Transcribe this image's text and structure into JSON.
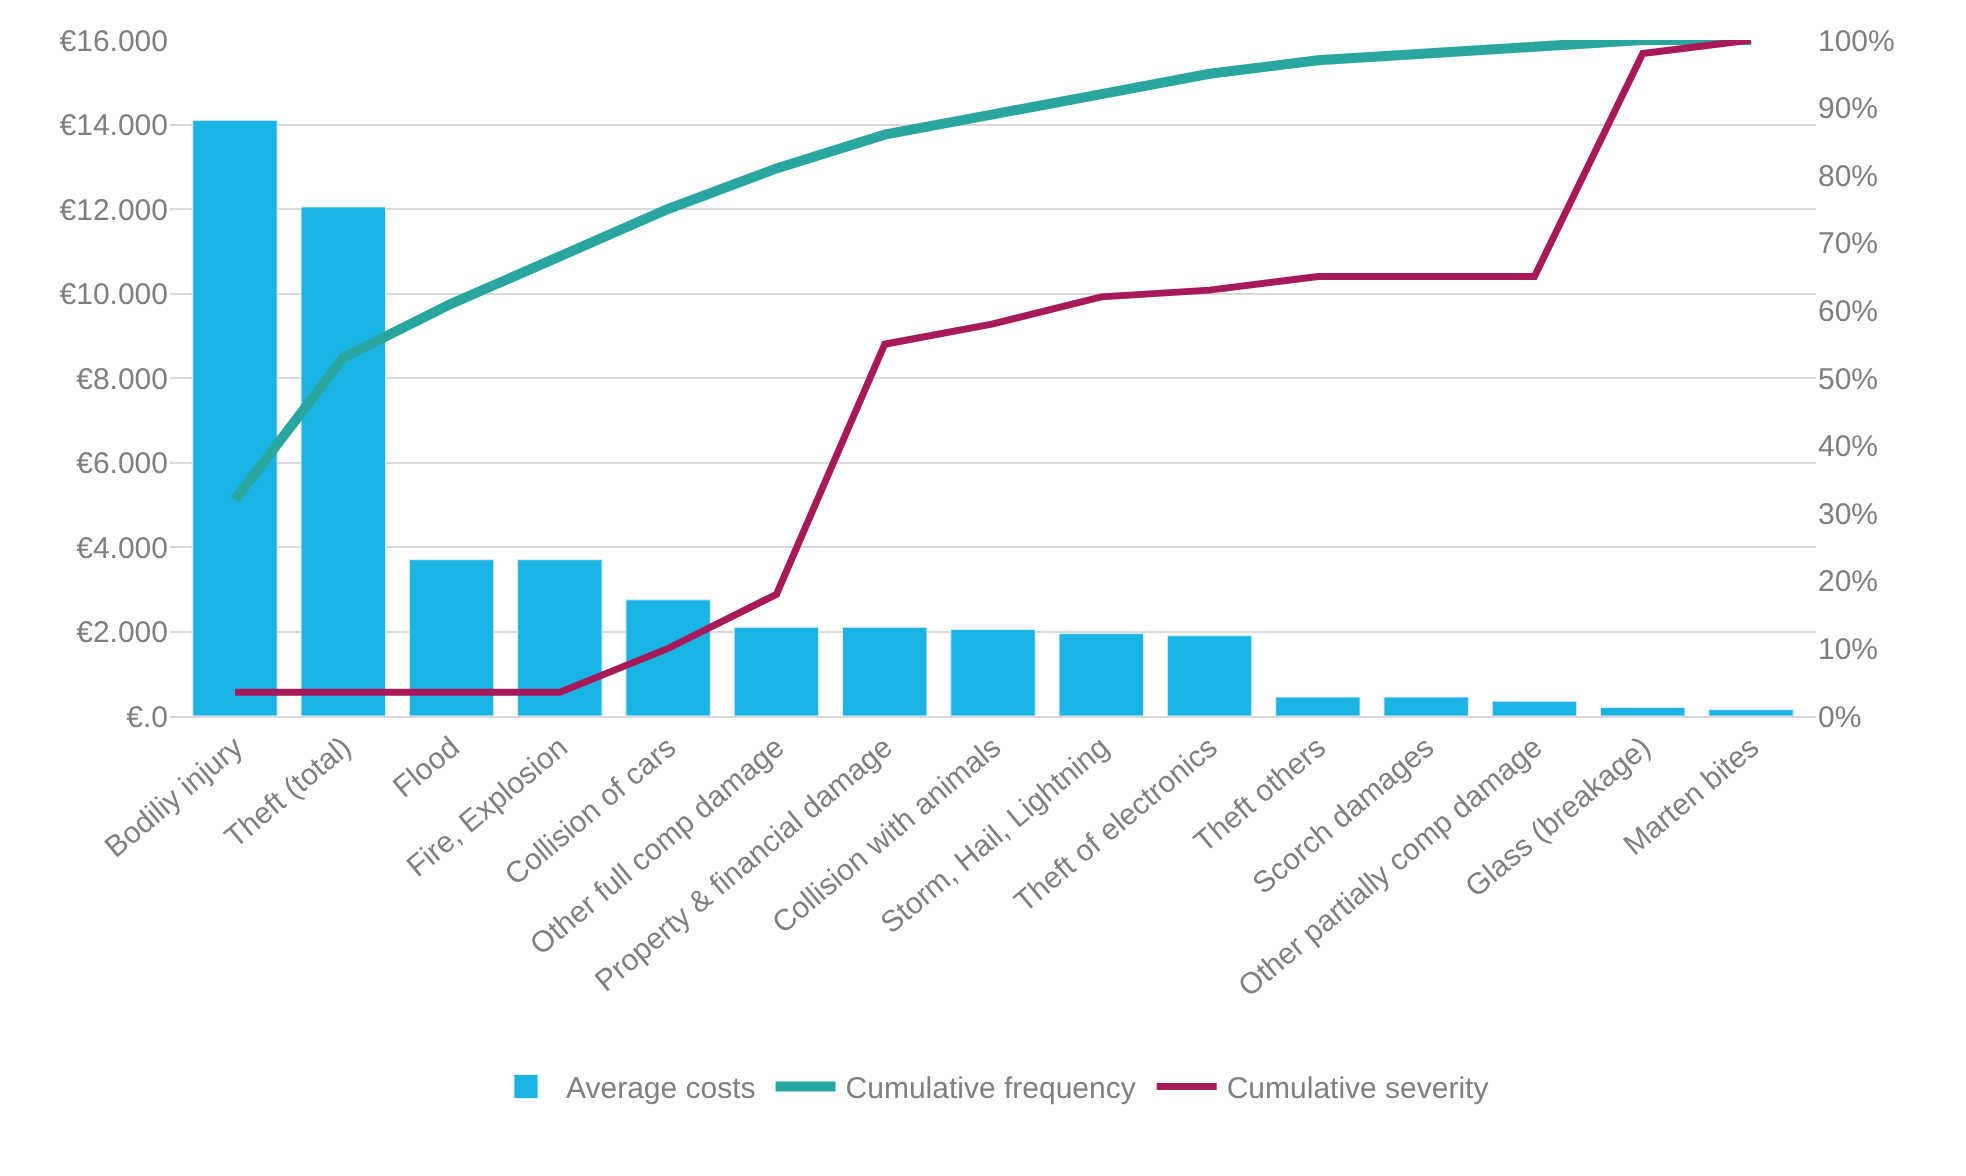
{
  "chart_data": {
    "type": "bar",
    "categories": [
      "Bodiliy injury",
      "Theft (total)",
      "Flood",
      "Fire, Explosion",
      "Collision of cars",
      "Other full comp damage",
      "Property & financial damage",
      "Collision with animals",
      "Storm, Hail, Lightning",
      "Theft of electronics",
      "Theft others",
      "Scorch damages",
      "Other partially comp damage",
      "Glass (breakage)",
      "Marten bites"
    ],
    "series": [
      {
        "name": "Average costs",
        "color": "#1ab4e4",
        "values": [
          14100,
          12050,
          3700,
          3700,
          2750,
          2100,
          2100,
          2050,
          1950,
          1900,
          450,
          450,
          350,
          200,
          150
        ]
      },
      {
        "name": "Cumulative frequency",
        "type": "line",
        "axis": "y2",
        "color": "#2aa6a0",
        "values": [
          32,
          53,
          61,
          68,
          75,
          81,
          86,
          89,
          92,
          95,
          97,
          98,
          99,
          100,
          100
        ]
      },
      {
        "name": "Cumulative severity",
        "type": "line",
        "axis": "y2",
        "color": "#a8195a",
        "values": [
          3.5,
          3.5,
          3.5,
          3.5,
          10,
          18,
          55,
          58,
          62,
          63,
          65,
          65,
          65,
          98,
          100
        ]
      }
    ],
    "ylim": [
      0,
      16000
    ],
    "yticks": [
      {
        "value": 0,
        "label": "€.0"
      },
      {
        "value": 2000,
        "label": "€2.000"
      },
      {
        "value": 4000,
        "label": "€4.000"
      },
      {
        "value": 6000,
        "label": "€6.000"
      },
      {
        "value": 8000,
        "label": "€8.000"
      },
      {
        "value": 10000,
        "label": "€10.000"
      },
      {
        "value": 12000,
        "label": "€12.000"
      },
      {
        "value": 14000,
        "label": "€14.000"
      },
      {
        "value": 16000,
        "label": "€16.000"
      }
    ],
    "y2lim": [
      0,
      100
    ],
    "y2ticks": [
      {
        "value": 0,
        "label": "0%"
      },
      {
        "value": 10,
        "label": "10%"
      },
      {
        "value": 20,
        "label": "20%"
      },
      {
        "value": 30,
        "label": "30%"
      },
      {
        "value": 40,
        "label": "40%"
      },
      {
        "value": 50,
        "label": "50%"
      },
      {
        "value": 60,
        "label": "60%"
      },
      {
        "value": 70,
        "label": "70%"
      },
      {
        "value": 80,
        "label": "80%"
      },
      {
        "value": 90,
        "label": "90%"
      },
      {
        "value": 100,
        "label": "100%"
      }
    ],
    "grid": "y",
    "legend": "bottom",
    "line_style": "solid",
    "marker": "none"
  }
}
